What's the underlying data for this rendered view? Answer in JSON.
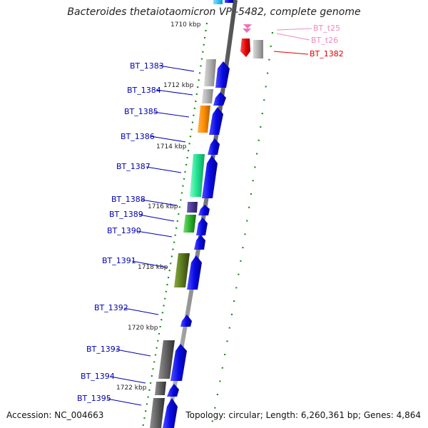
{
  "title": "Bacteroides thetaiotaomicron VPI-5482, complete genome",
  "footer": {
    "accession": "Accession: NC_004663",
    "summary": "Topology: circular; Length: 6,260,361 bp; Genes: 4,864"
  },
  "kbp_ticks": [
    "1710 kbp",
    "1712 kbp",
    "1714 kbp",
    "1716 kbp",
    "1718 kbp",
    "1720 kbp",
    "1722 kbp"
  ],
  "genes": [
    {
      "label": "BT_t25",
      "color": "#f08ac0"
    },
    {
      "label": "BT_t26",
      "color": "#f08ac0"
    },
    {
      "label": "BT_1382",
      "color": "#e00000"
    },
    {
      "label": "BT_1383",
      "color": "#0000b0"
    },
    {
      "label": "BT_1384",
      "color": "#0000b0"
    },
    {
      "label": "BT_1385",
      "color": "#0000b0"
    },
    {
      "label": "BT_1386",
      "color": "#0000b0"
    },
    {
      "label": "BT_1387",
      "color": "#0000b0"
    },
    {
      "label": "BT_1388",
      "color": "#0000b0"
    },
    {
      "label": "BT_1389",
      "color": "#0000b0"
    },
    {
      "label": "BT_1390",
      "color": "#0000b0"
    },
    {
      "label": "BT_1391",
      "color": "#0000b0"
    },
    {
      "label": "BT_1392",
      "color": "#0000b0"
    },
    {
      "label": "BT_1393",
      "color": "#0000b0"
    },
    {
      "label": "BT_1394",
      "color": "#0000b0"
    },
    {
      "label": "BT_1395",
      "color": "#0000b0"
    }
  ],
  "colors": {
    "backbone": "#808080",
    "tick_green": "#1a8a1a",
    "cds_forward": "#0a0ae6",
    "cds_reverse": "#e00000",
    "trna": "#f070b8",
    "cog_gray": "#b0b0b0",
    "cog_orange": "#ff8c00",
    "cog_teal": "#20e090",
    "cog_purple": "#4a3a90",
    "cog_green": "#30b030",
    "cog_olive": "#5a7a20",
    "cog_darkgray": "#606060"
  }
}
